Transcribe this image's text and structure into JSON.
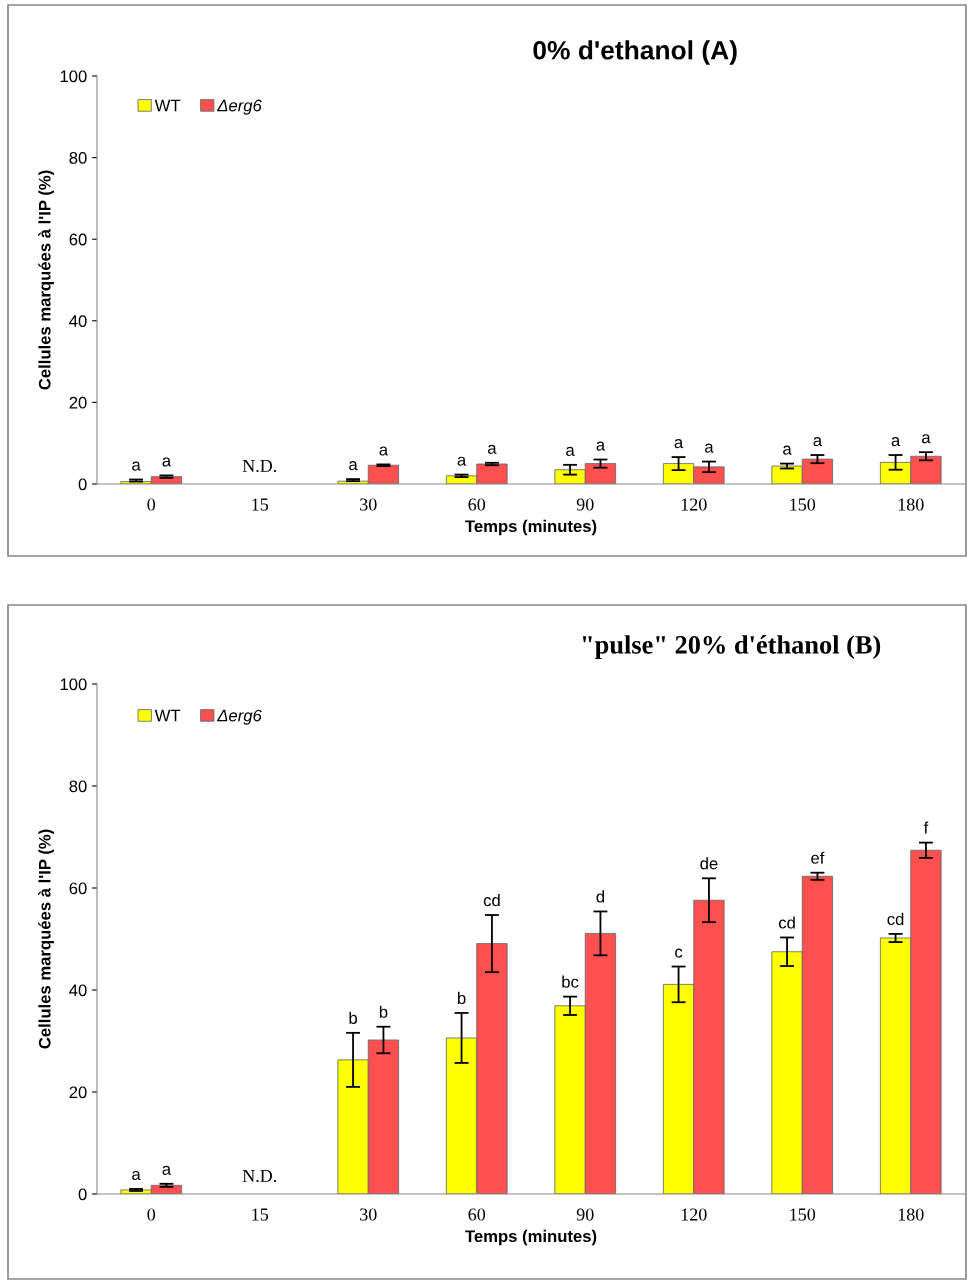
{
  "chart_data": [
    {
      "type": "bar",
      "title": "0% d'ethanol (A)",
      "xlabel": "Temps (minutes)",
      "ylabel": "Cellules marquées à l'IP (%)",
      "categories": [
        "0",
        "15",
        "30",
        "60",
        "90",
        "120",
        "150",
        "180"
      ],
      "series": [
        {
          "name": "WT",
          "color": "#ffff00",
          "values": [
            0.6,
            null,
            0.7,
            2.0,
            3.5,
            5.0,
            4.4,
            5.3
          ],
          "errors": [
            [
              0.6,
              1.1
            ],
            null,
            [
              0.7,
              1.2
            ],
            0.3,
            1.2,
            1.6,
            0.6,
            1.8
          ],
          "value_labels": [
            "a",
            null,
            "a",
            "a",
            "a",
            "a",
            "a",
            "a"
          ]
        },
        {
          "name": "Δerg6",
          "color": "#ff5050",
          "values": [
            1.8,
            null,
            4.6,
            4.9,
            5.0,
            4.2,
            6.1,
            6.8
          ],
          "errors": [
            0.3,
            null,
            0.2,
            0.3,
            1.0,
            1.3,
            1.0,
            1.0
          ],
          "value_labels": [
            "a",
            null,
            "a",
            "a",
            "a",
            "a",
            "a",
            "a"
          ]
        }
      ],
      "annotations": [
        "N.D."
      ],
      "ylim": [
        0,
        100
      ],
      "yticks": [
        0,
        20,
        40,
        60,
        80,
        100
      ],
      "grid": false,
      "legend": "top left"
    },
    {
      "type": "bar",
      "title": "\"pulse\" 20% d'éthanol (B)",
      "xlabel": "Temps (minutes)",
      "ylabel": "Cellules marquées à l'IP (%)",
      "categories": [
        "0",
        "15",
        "30",
        "60",
        "90",
        "120",
        "150",
        "180"
      ],
      "series": [
        {
          "name": "WT",
          "color": "#ffff00",
          "values": [
            0.8,
            null,
            26.3,
            30.6,
            36.9,
            41.1,
            47.5,
            50.2
          ],
          "errors": [
            0.2,
            null,
            5.3,
            4.9,
            1.8,
            3.5,
            2.8,
            0.8
          ],
          "value_labels": [
            "a",
            null,
            "b",
            "b",
            "bc",
            "c",
            "cd",
            "cd"
          ]
        },
        {
          "name": "Δerg6",
          "color": "#ff5050",
          "values": [
            1.7,
            null,
            30.2,
            49.1,
            51.1,
            57.6,
            62.3,
            67.4
          ],
          "errors": [
            0.3,
            null,
            2.6,
            5.6,
            4.3,
            4.3,
            0.7,
            1.5
          ],
          "value_labels": [
            "a",
            null,
            "b",
            "cd",
            "d",
            "de",
            "ef",
            "f"
          ]
        }
      ],
      "annotations": [
        "N.D."
      ],
      "ylim": [
        0,
        100
      ],
      "yticks": [
        0,
        20,
        40,
        60,
        80,
        100
      ],
      "grid": false,
      "legend": "top left"
    }
  ]
}
